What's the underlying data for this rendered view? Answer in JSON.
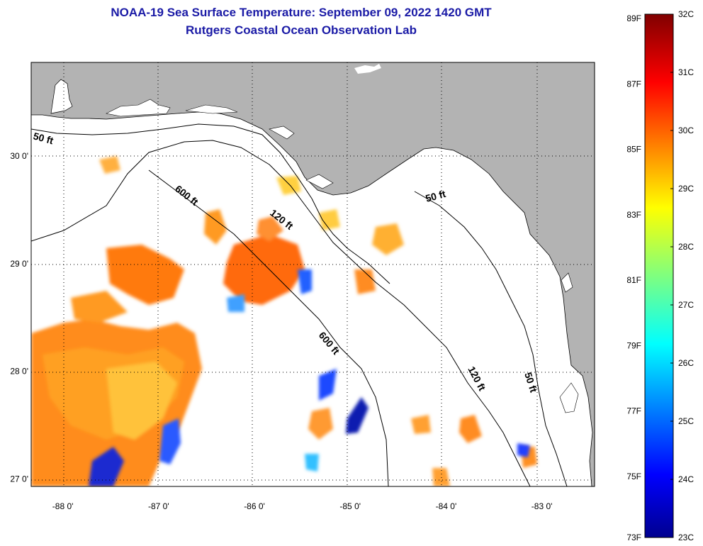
{
  "title_line1": "NOAA-19 Sea Surface Temperature:  September 09, 2022 1420 GMT",
  "title_line2": "Rutgers Coastal Ocean Observation Lab",
  "lat_labels": [
    {
      "value": 30,
      "text": "30 0'"
    },
    {
      "value": 29,
      "text": "29 0'"
    },
    {
      "value": 28,
      "text": "28 0'"
    },
    {
      "value": 27,
      "text": "27 0'"
    }
  ],
  "lon_labels": [
    {
      "value": -88,
      "text": "-88 0'"
    },
    {
      "value": -87,
      "text": "-87 0'"
    },
    {
      "value": -86,
      "text": "-86 0'"
    },
    {
      "value": -85,
      "text": "-85 0'"
    },
    {
      "value": -84,
      "text": "-84 0'"
    },
    {
      "value": -83,
      "text": "-83 0'"
    }
  ],
  "map_extent": {
    "lon_min": -88.33,
    "lon_max": -82.45,
    "lat_min": 26.93,
    "lat_max": 30.87
  },
  "depth_contours": [
    "50 ft",
    "600 ft",
    "120 ft",
    "600 ft",
    "50 ft",
    "120 ft",
    "50 ft"
  ],
  "colorbar": {
    "fahrenheit": [
      "89F",
      "87F",
      "85F",
      "83F",
      "81F",
      "79F",
      "77F",
      "75F",
      "73F"
    ],
    "celsius": [
      "32C",
      "31C",
      "30C",
      "29C",
      "28C",
      "27C",
      "26C",
      "25C",
      "24C",
      "23C"
    ],
    "celsius_range": [
      23,
      32
    ]
  },
  "colors": {
    "title": "#1a1aa6",
    "land": "#b3b3b3",
    "ocean_no_data": "#ffffff"
  }
}
